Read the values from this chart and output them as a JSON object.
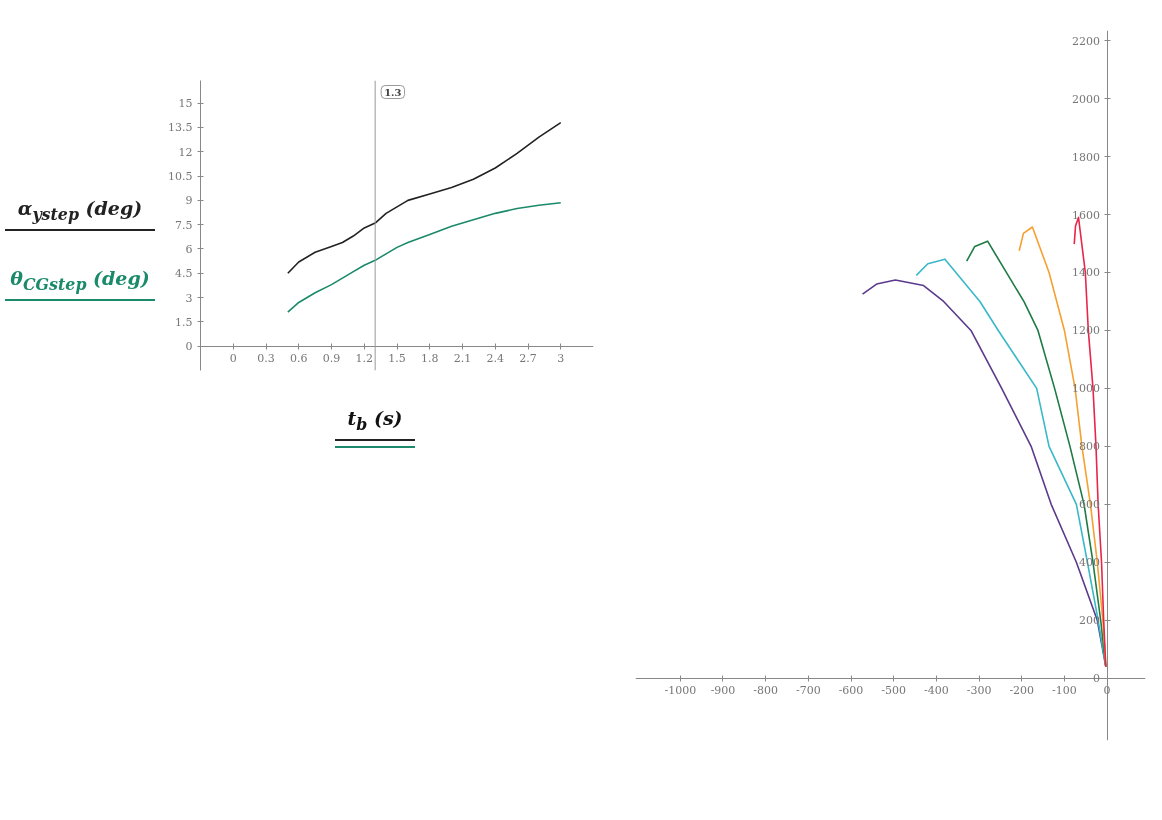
{
  "chart_data": [
    {
      "type": "line",
      "xlabel": "t$_{b}$ (s)",
      "legend": "left",
      "x": [
        0.5,
        0.6,
        0.75,
        0.9,
        1.0,
        1.1,
        1.2,
        1.3,
        1.4,
        1.5,
        1.6,
        1.8,
        2.0,
        2.2,
        2.4,
        2.6,
        2.8,
        3.0
      ],
      "series": [
        {
          "name": "α$_{ystep}$ (deg)",
          "color": "#222222",
          "values": [
            4.5,
            5.2,
            5.8,
            6.15,
            6.4,
            6.8,
            7.3,
            7.6,
            8.2,
            8.6,
            9.0,
            9.4,
            9.8,
            10.3,
            11.0,
            11.9,
            12.9,
            13.8
          ]
        },
        {
          "name": "θ$_{CGstep}$ (deg)",
          "color": "#1a8a6a",
          "values": [
            2.1,
            2.7,
            3.3,
            3.8,
            4.2,
            4.6,
            5.0,
            5.3,
            5.7,
            6.1,
            6.4,
            6.9,
            7.4,
            7.8,
            8.2,
            8.5,
            8.7,
            8.85
          ]
        }
      ],
      "xlim": [
        -0.3,
        3.3
      ],
      "ylim": [
        -1.5,
        16.4
      ],
      "xticks": [
        0,
        0.3,
        0.6,
        0.9,
        1.2,
        1.5,
        1.8,
        2.1,
        2.4,
        2.7,
        3
      ],
      "yticks": [
        0,
        1.5,
        3,
        4.5,
        6,
        7.5,
        9,
        10.5,
        12,
        13.5,
        15
      ],
      "ref_lines": [
        {
          "axis": "x",
          "value": 1.3,
          "label": "1.3",
          "color": "#999999"
        }
      ],
      "grid": false,
      "marker": "none",
      "line_style": "solid"
    },
    {
      "type": "line",
      "series": [
        {
          "color": "#5b3a8c",
          "x": [
            -3,
            -23,
            -72,
            -131,
            -178,
            -247,
            -319,
            -383,
            -430,
            -496,
            -540,
            -573
          ],
          "values": [
            40,
            200,
            400,
            600,
            800,
            1000,
            1200,
            1300,
            1355,
            1374,
            1360,
            1325
          ]
        },
        {
          "color": "#3ab8c8",
          "x": [
            -3,
            -21,
            -46,
            -72,
            -136,
            -165,
            -255,
            -298,
            -380,
            -420,
            -447
          ],
          "values": [
            40,
            200,
            400,
            600,
            800,
            1000,
            1200,
            1300,
            1446,
            1430,
            1390
          ]
        },
        {
          "color": "#1e7b45",
          "x": [
            -3,
            -15,
            -33,
            -54,
            -87,
            -123,
            -162,
            -195,
            -280,
            -310,
            -329
          ],
          "values": [
            40,
            200,
            400,
            600,
            800,
            1000,
            1200,
            1300,
            1508,
            1490,
            1439
          ]
        },
        {
          "color": "#f5a030",
          "x": [
            -3,
            -10,
            -23,
            -39,
            -59,
            -75,
            -100,
            -136,
            -175,
            -196,
            -206
          ],
          "values": [
            40,
            200,
            400,
            600,
            800,
            1000,
            1200,
            1400,
            1557,
            1535,
            1475
          ]
        },
        {
          "color": "#e8264a",
          "x": [
            -3,
            -8,
            -13,
            -21,
            -26,
            -33,
            -44,
            -51,
            -67,
            -74,
            -77
          ],
          "values": [
            40,
            200,
            400,
            600,
            800,
            1000,
            1200,
            1400,
            1590,
            1560,
            1498
          ]
        }
      ],
      "xlim": [
        -1105,
        90
      ],
      "ylim": [
        -215,
        2235
      ],
      "xticks": [
        -1000,
        -900,
        -800,
        -700,
        -600,
        -500,
        -400,
        -300,
        -200,
        -100,
        0
      ],
      "yticks": [
        0,
        200,
        400,
        600,
        800,
        1000,
        1200,
        1400,
        1600,
        1800,
        2000,
        2200
      ],
      "grid": false,
      "marker": "none",
      "line_style": "solid"
    }
  ]
}
